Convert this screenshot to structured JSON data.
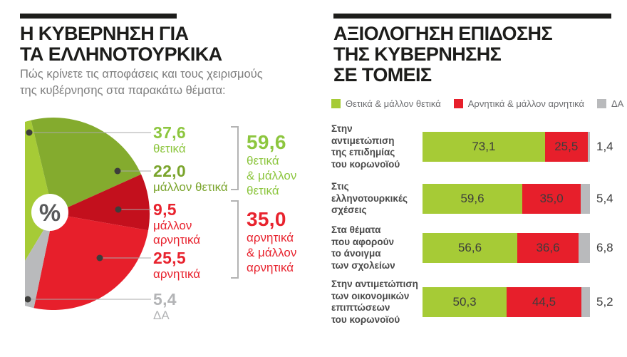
{
  "left_panel": {
    "title_lines": [
      "Η ΚΥΒΕΡΝΗΣΗ ΓΙΑ",
      "ΤΑ ΕΛΛΗΝΟΤΟΥΡΚΙΚΑ"
    ],
    "subtitle_lines": [
      "Πώς κρίνετε τις αποφάσεις και τους χειρισμούς",
      "της κυβέρνησης στα παρακάτω θέματα:"
    ],
    "center_symbol": "%",
    "callouts": [
      {
        "value": "37,6",
        "label_lines": [
          "θετικά"
        ]
      },
      {
        "value": "22,0",
        "label_lines": [
          "μάλλον θετικά"
        ]
      },
      {
        "value": "9,5",
        "label_lines": [
          "μάλλον",
          "αρνητικά"
        ]
      },
      {
        "value": "25,5",
        "label_lines": [
          "αρνητικά"
        ]
      },
      {
        "value": "5,4",
        "label_lines": [
          "ΔΑ"
        ]
      }
    ],
    "groups": [
      {
        "value": "59,6",
        "label_lines": [
          "θετικά",
          "& μάλλον",
          "θετικά"
        ]
      },
      {
        "value": "35,0",
        "label_lines": [
          "αρνητικά",
          "& μάλλον",
          "αρνητικά"
        ]
      }
    ]
  },
  "right_panel": {
    "title_lines": [
      "ΑΞΙΟΛΟΓΗΣΗ ΕΠΙΔΟΣΗΣ",
      "ΤΗΣ ΚΥΒΕΡΝΗΣΗΣ",
      "ΣΕ ΤΟΜΕΙΣ"
    ],
    "legend": [
      {
        "label": "Θετικά & μάλλον θετικά",
        "color": "#a6cb36"
      },
      {
        "label": "Αρνητικά & μάλλον αρνητικά",
        "color": "#e71f2b"
      },
      {
        "label": "ΔΑ",
        "color": "#b9babc"
      }
    ],
    "rows": [
      {
        "label_lines": [
          "Στην",
          "αντιμετώπιση",
          "της επιδημίας",
          "του κορωνοϊού"
        ],
        "positive": "73,1",
        "negative": "25,5",
        "na": "1,4"
      },
      {
        "label_lines": [
          "Στις",
          "ελληνοτουρκικές",
          "σχέσεις"
        ],
        "positive": "59,6",
        "negative": "35,0",
        "na": "5,4"
      },
      {
        "label_lines": [
          "Στα θέματα",
          "που αφορούν",
          "το άνοιγμα",
          "των σχολείων"
        ],
        "positive": "56,6",
        "negative": "36,6",
        "na": "6,8"
      },
      {
        "label_lines": [
          "Στην αντιμετώπιση",
          "των οικονομικών",
          "επιπτώσεων",
          "του κορωνοϊού"
        ],
        "positive": "50,3",
        "negative": "44,5",
        "na": "5,2"
      }
    ]
  },
  "colors": {
    "positive_light_green": "#a6cb36",
    "positive_medium_green": "#84ab2e",
    "negative_bright_red": "#e71f2b",
    "negative_dark_red": "#c3101d",
    "na_gray": "#b9babc",
    "title_black": "#1d1d1b",
    "subtitle_gray": "#7d7d7d",
    "green_text": "#8dc63f",
    "red_text": "#e8232e"
  },
  "chart_data": [
    {
      "type": "pie",
      "title": "Η ΚΥΒΕΡΝΗΣΗ ΓΙΑ ΤΑ ΕΛΛΗΝΟΤΟΥΡΚΙΚΑ",
      "subtitle": "Πώς κρίνετε τις αποφάσεις και τους χειρισμούς της κυβέρνησης στα παρακάτω θέματα:",
      "unit": "%",
      "start_angle_deg": 211.2,
      "clockwise": true,
      "slices": [
        {
          "key": "thetika",
          "label": "θετικά",
          "value": 37.6,
          "display": "37,6",
          "color": "#a6cb36"
        },
        {
          "key": "mallon-thetika",
          "label": "μάλλον θετικά",
          "value": 22.0,
          "display": "22,0",
          "color": "#84ab2e"
        },
        {
          "key": "mallon-arnitika",
          "label": "μάλλον αρνητικά",
          "value": 9.5,
          "display": "9,5",
          "color": "#c3101d"
        },
        {
          "key": "arnitika",
          "label": "αρνητικά",
          "value": 25.5,
          "display": "25,5",
          "color": "#e71f2b"
        },
        {
          "key": "da",
          "label": "ΔΑ",
          "value": 5.4,
          "display": "5,4",
          "color": "#b9babc"
        }
      ],
      "groups": [
        {
          "label": "θετικά & μάλλον θετικά",
          "value": 59.6
        },
        {
          "label": "αρνητικά & μάλλον αρνητικά",
          "value": 35.0
        }
      ]
    },
    {
      "type": "bar",
      "stacked": true,
      "orientation": "horizontal",
      "title": "ΑΞΙΟΛΟΓΗΣΗ ΕΠΙΔΟΣΗΣ ΤΗΣ ΚΥΒΕΡΝΗΣΗΣ ΣΕ ΤΟΜΕΙΣ",
      "xlim": [
        0,
        100
      ],
      "unit": "%",
      "legend_position": "top",
      "categories": [
        "Στην αντιμετώπιση της επιδημίας του κορωνοϊού",
        "Στις ελληνοτουρκικές σχέσεις",
        "Στα θέματα που αφορούν το άνοιγμα των σχολείων",
        "Στην αντιμετώπιση των οικονομικών επιπτώσεων του κορωνοϊού"
      ],
      "series": [
        {
          "name": "Θετικά & μάλλον θετικά",
          "color": "#a6cb36",
          "values": [
            73.1,
            59.6,
            56.6,
            50.3
          ]
        },
        {
          "name": "Αρνητικά & μάλλον αρνητικά",
          "color": "#e71f2b",
          "values": [
            25.5,
            35.0,
            36.6,
            44.5
          ]
        },
        {
          "name": "ΔΑ",
          "color": "#b9babc",
          "values": [
            1.4,
            5.4,
            6.8,
            5.2
          ]
        }
      ]
    }
  ]
}
